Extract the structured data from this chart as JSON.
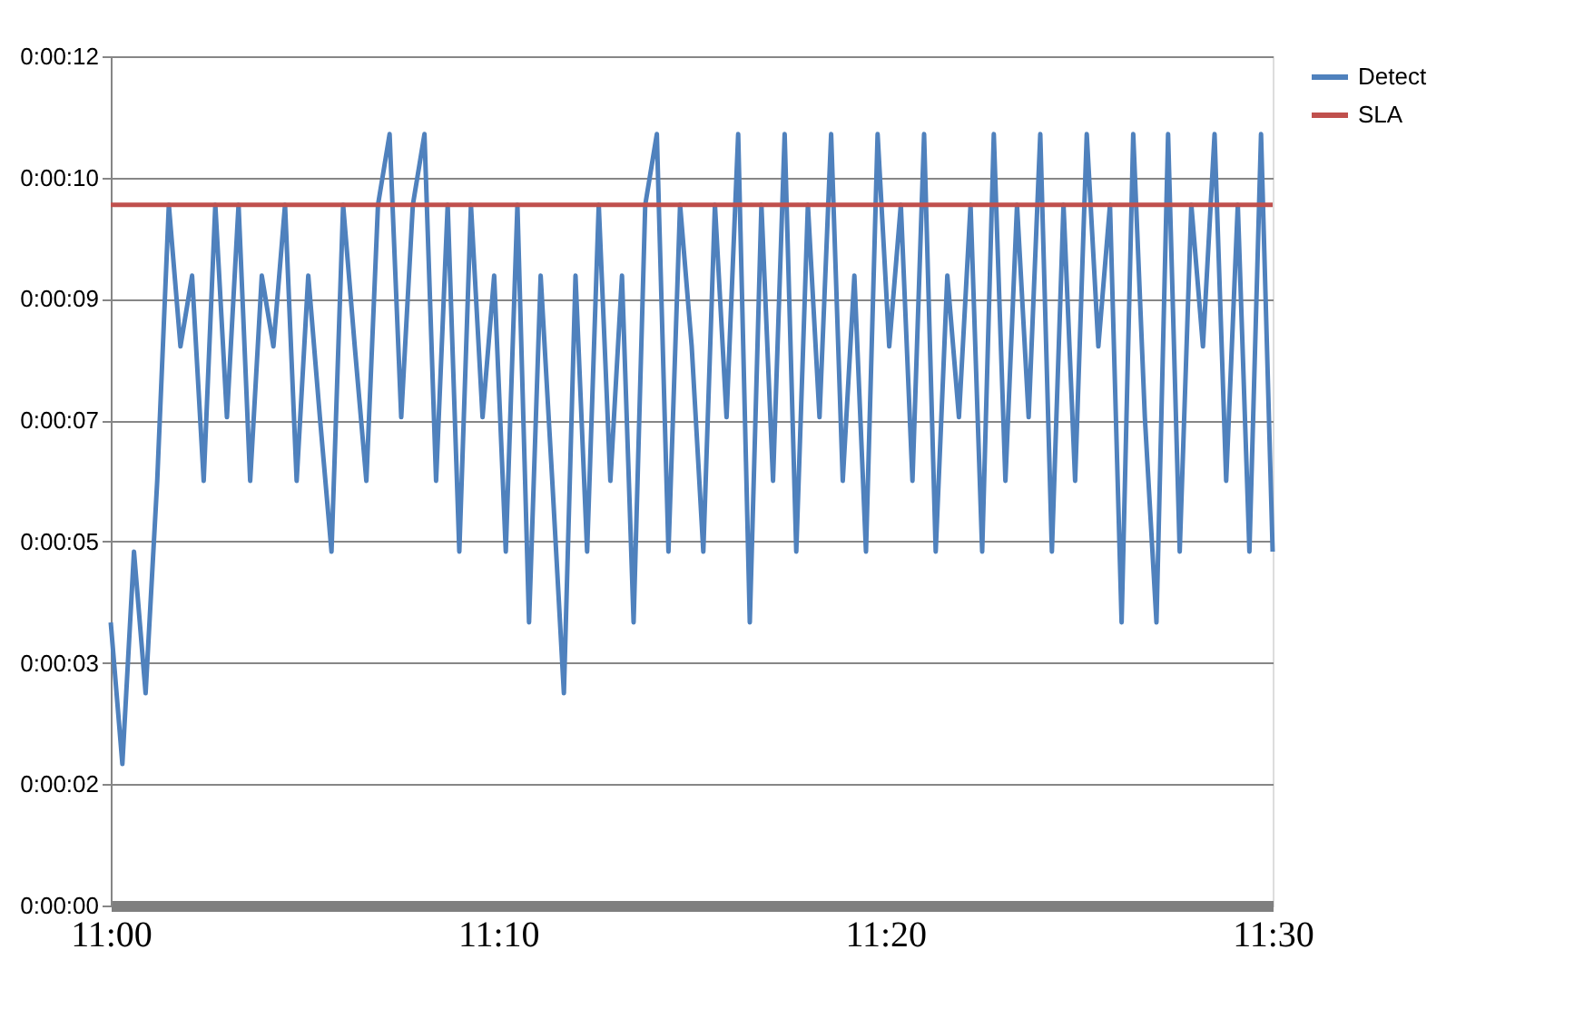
{
  "chart_data": {
    "type": "line",
    "xlim": [
      11,
      11.5
    ],
    "xticks": [
      {
        "value": 11,
        "label": "11:00"
      },
      {
        "value": 11.1667,
        "label": "11:10"
      },
      {
        "value": 11.3333,
        "label": "11:20"
      },
      {
        "value": 11.5,
        "label": "11:30"
      }
    ],
    "ylim": [
      0,
      12
    ],
    "yticks": [
      {
        "value": 0,
        "label": "0:00:00"
      },
      {
        "value": 1.714,
        "label": "0:00:02"
      },
      {
        "value": 3.429,
        "label": "0:00:03"
      },
      {
        "value": 5.143,
        "label": "0:00:05"
      },
      {
        "value": 6.857,
        "label": "0:00:07"
      },
      {
        "value": 8.571,
        "label": "0:00:09"
      },
      {
        "value": 10.286,
        "label": "0:00:10"
      },
      {
        "value": 12,
        "label": "0:00:12"
      }
    ],
    "grid": "y",
    "legend": "right",
    "marker": "none",
    "line_style": "solid",
    "series": [
      {
        "name": "Detect",
        "color": "#4f81bd",
        "x": [
          11,
          11.005,
          11.01,
          11.015,
          11.02,
          11.025,
          11.03,
          11.035,
          11.04,
          11.045,
          11.05,
          11.055,
          11.06,
          11.065,
          11.07,
          11.075,
          11.08,
          11.085,
          11.09,
          11.095,
          11.1,
          11.105,
          11.11,
          11.115,
          11.12,
          11.125,
          11.13,
          11.135,
          11.14,
          11.145,
          11.15,
          11.155,
          11.16,
          11.165,
          11.17,
          11.175,
          11.18,
          11.185,
          11.19,
          11.195,
          11.2,
          11.205,
          11.21,
          11.215,
          11.22,
          11.225,
          11.23,
          11.235,
          11.24,
          11.245,
          11.25,
          11.255,
          11.26,
          11.265,
          11.27,
          11.275,
          11.28,
          11.285,
          11.29,
          11.295,
          11.3,
          11.305,
          11.31,
          11.315,
          11.32,
          11.325,
          11.33,
          11.335,
          11.34,
          11.345,
          11.35,
          11.355,
          11.36,
          11.365,
          11.37,
          11.375,
          11.38,
          11.385,
          11.39,
          11.395,
          11.4,
          11.405,
          11.41,
          11.415,
          11.42,
          11.425,
          11.43,
          11.435,
          11.44,
          11.445,
          11.45,
          11.455,
          11.46,
          11.465,
          11.47,
          11.475,
          11.48,
          11.485,
          11.49,
          11.495,
          11.5
        ],
        "values": [
          4.0,
          2.0,
          5.0,
          3.0,
          6.0,
          9.9,
          7.9,
          8.9,
          6.0,
          9.9,
          6.9,
          9.9,
          6.0,
          8.9,
          7.9,
          9.9,
          6.0,
          8.9,
          6.9,
          5.0,
          9.9,
          7.9,
          6.0,
          9.9,
          10.9,
          6.9,
          9.9,
          10.9,
          6.0,
          9.9,
          5.0,
          9.9,
          6.9,
          8.9,
          5.0,
          9.9,
          4.0,
          8.9,
          6.0,
          3.0,
          8.9,
          5.0,
          9.9,
          6.0,
          8.9,
          4.0,
          9.9,
          10.9,
          5.0,
          9.9,
          7.9,
          5.0,
          9.9,
          6.9,
          10.9,
          4.0,
          9.9,
          6.0,
          10.9,
          5.0,
          9.9,
          6.9,
          10.9,
          6.0,
          8.9,
          5.0,
          10.9,
          7.9,
          9.9,
          6.0,
          10.9,
          5.0,
          8.9,
          6.9,
          9.9,
          5.0,
          10.9,
          6.0,
          9.9,
          6.9,
          10.9,
          5.0,
          9.9,
          6.0,
          10.9,
          7.9,
          9.9,
          4.0,
          10.9,
          6.9,
          4.0,
          10.9,
          5.0,
          9.9,
          7.9,
          10.9,
          6.0,
          9.9,
          5.0,
          10.9,
          5.0
        ]
      },
      {
        "name": "SLA",
        "color": "#c0504d",
        "x": [
          11,
          11.5
        ],
        "values": [
          9.9,
          9.9
        ]
      }
    ]
  }
}
